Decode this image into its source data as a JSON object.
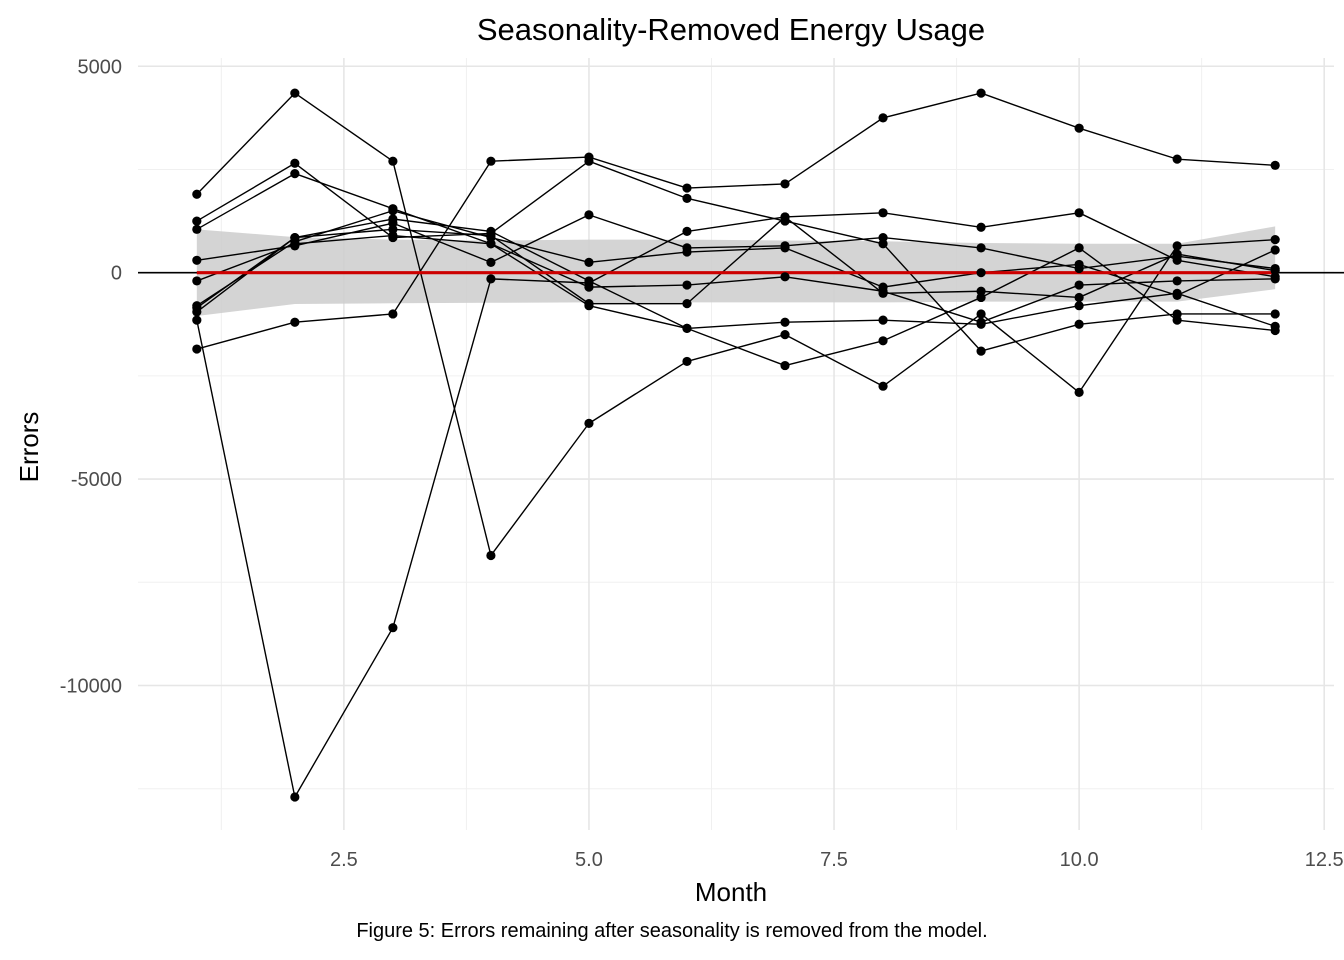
{
  "chart_data": {
    "type": "line",
    "title": "Seasonality-Removed Energy Usage",
    "xlabel": "Month",
    "ylabel": "Errors",
    "xlim": [
      0.4,
      12.6
    ],
    "ylim": [
      -13500,
      5200
    ],
    "x_ticks": [
      2.5,
      5.0,
      7.5,
      10.0,
      12.5
    ],
    "x_tick_labels": [
      "2.5",
      "5.0",
      "7.5",
      "10.0",
      "12.5"
    ],
    "y_ticks": [
      5000,
      0,
      -5000,
      -10000
    ],
    "y_tick_labels": [
      "5000",
      "0",
      "-5000",
      "-10000"
    ],
    "grid": true,
    "legend": "none",
    "zero_line": 0,
    "trend_line": {
      "color": "#cc0000",
      "values": [
        0,
        0
      ]
    },
    "confidence_band": {
      "x": [
        1,
        2,
        3,
        4,
        5,
        6,
        7,
        8,
        9,
        10,
        11,
        12
      ],
      "upper": [
        1050,
        860,
        800,
        780,
        800,
        800,
        780,
        760,
        720,
        700,
        700,
        1120
      ],
      "lower": [
        -1050,
        -760,
        -740,
        -730,
        -720,
        -720,
        -720,
        -720,
        -700,
        -700,
        -700,
        -400
      ]
    },
    "x": [
      1,
      2,
      3,
      4,
      5,
      6,
      7,
      8,
      9,
      10,
      11,
      12
    ],
    "series": [
      {
        "values": [
          -1850,
          -1200,
          -1000,
          2700,
          2800,
          2050,
          2150,
          3750,
          4350,
          3500,
          2750,
          2600
        ]
      },
      {
        "values": [
          1900,
          4350,
          2700,
          -6850,
          -3650,
          -2150,
          -1500,
          -2750,
          -1000,
          -2900,
          650,
          800
        ]
      },
      {
        "values": [
          1050,
          2400,
          1550,
          700,
          -800,
          -1350,
          -2250,
          -1650,
          -600,
          600,
          -1150,
          -1400
        ]
      },
      {
        "values": [
          1250,
          2650,
          850,
          950,
          2700,
          1800,
          1250,
          700,
          -1900,
          -1250,
          -1000,
          -1000
        ]
      },
      {
        "values": [
          -1150,
          -12700,
          -8600,
          -150,
          -250,
          1000,
          1350,
          1450,
          1100,
          1450,
          300,
          -100
        ]
      },
      {
        "values": [
          300,
          650,
          1200,
          250,
          1400,
          600,
          650,
          850,
          600,
          100,
          400,
          100
        ]
      },
      {
        "values": [
          -850,
          850,
          1300,
          1000,
          -200,
          -1350,
          -1200,
          -1150,
          -1250,
          -800,
          -500,
          -1300
        ]
      },
      {
        "values": [
          -200,
          700,
          900,
          700,
          -350,
          -300,
          -100,
          -450,
          -1200,
          -300,
          -200,
          -150
        ]
      },
      {
        "values": [
          -800,
          750,
          1500,
          850,
          250,
          500,
          600,
          -350,
          0,
          200,
          -550,
          550
        ]
      },
      {
        "values": [
          -950,
          850,
          1050,
          900,
          -750,
          -750,
          1350,
          -500,
          -450,
          -600,
          450,
          50
        ]
      }
    ]
  },
  "caption": "Figure 5: Errors remaining after seasonality is removed from the model."
}
